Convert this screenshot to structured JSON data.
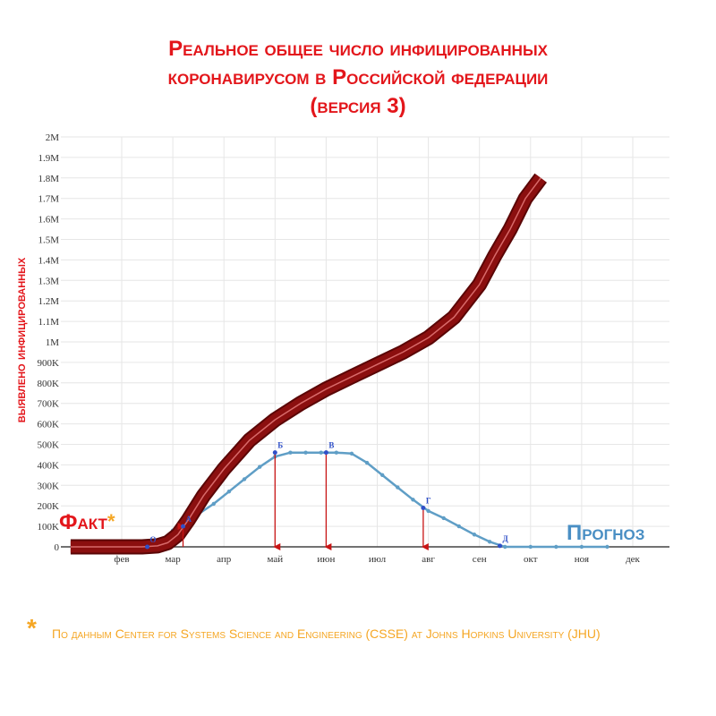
{
  "title": {
    "line1": "Реальное общее число инфицированных",
    "line2": "коронавирусом в Российской федерации",
    "line3": "(версия 3)"
  },
  "colors": {
    "title": "#e3161b",
    "fact_curve": "#8b0f0f",
    "fact_highlight": "#d86a6a",
    "forecast": "#5f9ec6",
    "arrow": "#c81414",
    "prognoz_label": "#4a8fc4",
    "footnote": "#f5a623"
  },
  "labels": {
    "fact": "Факт",
    "fact_star": "*",
    "prognoz": "Прогноз",
    "footnote_star": "*",
    "footnote": "По данным Center for Systems Science and Engineering (CSSE) at Johns Hopkins University (JHU)"
  },
  "chart_data": {
    "type": "line",
    "ylabel": "выявлено инфицированных",
    "xlabel": "",
    "x_ticks": [
      "фев",
      "мар",
      "апр",
      "май",
      "июн",
      "июл",
      "авг",
      "сен",
      "окт",
      "ноя",
      "дек"
    ],
    "y_ticks": [
      "0",
      "100K",
      "200K",
      "300K",
      "400K",
      "500K",
      "600K",
      "700K",
      "800K",
      "900K",
      "1M",
      "1.1M",
      "1.2M",
      "1.3M",
      "1.4M",
      "1.5M",
      "1.6M",
      "1.7M",
      "1.8M",
      "1.9M",
      "2M"
    ],
    "ylim": [
      0,
      2000000
    ],
    "grid": true,
    "series": [
      {
        "name": "Факт",
        "x": [
          0,
          1.0,
          1.4,
          1.7,
          1.9,
          2.1,
          2.3,
          2.6,
          3.0,
          3.5,
          4.0,
          4.5,
          5.0,
          5.5,
          6.0,
          6.5,
          7.0,
          7.5,
          8.0,
          8.3,
          8.6,
          8.9,
          9.2
        ],
        "y": [
          0,
          0,
          0,
          5000,
          20000,
          60000,
          130000,
          250000,
          380000,
          520000,
          620000,
          700000,
          770000,
          830000,
          890000,
          950000,
          1020000,
          1120000,
          1280000,
          1420000,
          1550000,
          1700000,
          1800000
        ]
      },
      {
        "name": "Прогноз",
        "x": [
          1.2,
          1.5,
          1.8,
          2.0,
          2.2,
          2.5,
          2.8,
          3.1,
          3.4,
          3.7,
          4.0,
          4.3,
          4.6,
          4.9,
          5.2,
          5.5,
          5.8,
          6.1,
          6.4,
          6.7,
          7.0,
          7.3,
          7.6,
          7.9,
          8.2,
          8.5,
          9.0,
          9.5,
          10.0,
          10.5
        ],
        "y": [
          0,
          0,
          25000,
          80000,
          120000,
          160000,
          210000,
          270000,
          330000,
          390000,
          440000,
          460000,
          460000,
          460000,
          460000,
          455000,
          410000,
          350000,
          290000,
          230000,
          175000,
          140000,
          100000,
          60000,
          25000,
          0,
          0,
          0,
          0,
          0
        ]
      }
    ],
    "points": [
      {
        "label": "О",
        "x": 1.5,
        "y": 0
      },
      {
        "label": "А",
        "x": 2.2,
        "y": 100000
      },
      {
        "label": "Б",
        "x": 4.0,
        "y": 460000
      },
      {
        "label": "В",
        "x": 5.0,
        "y": 460000
      },
      {
        "label": "Г",
        "x": 6.9,
        "y": 190000
      },
      {
        "label": "Д",
        "x": 8.4,
        "y": 5000
      }
    ],
    "arrows": [
      {
        "x": 2.2,
        "from": 0,
        "to": 100000
      },
      {
        "x": 4.0,
        "from": 460000,
        "to": 0
      },
      {
        "x": 5.0,
        "from": 460000,
        "to": 0
      },
      {
        "x": 6.9,
        "from": 190000,
        "to": 0
      }
    ]
  }
}
